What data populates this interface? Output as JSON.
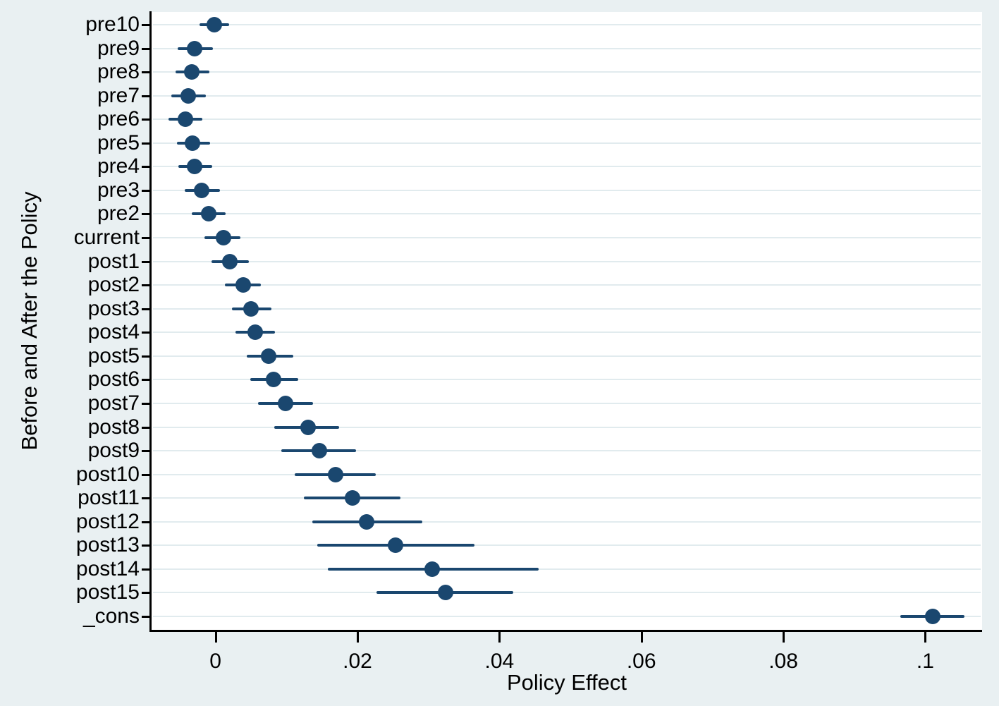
{
  "figure": {
    "background_color": "#e9f0f2",
    "plot_background_color": "#ffffff",
    "marker_color": "#1a476f",
    "grid_color": "#e1ebee",
    "axis_color": "#000000"
  },
  "chart_data": {
    "type": "scatter",
    "subtype": "horizontal-coefficient-plot-with-confidence-intervals",
    "title": "",
    "xlabel": "Policy Effect",
    "ylabel": "Before and After the Policy",
    "xlim": [
      -0.009,
      0.108
    ],
    "x_ticks": [
      0,
      0.02,
      0.04,
      0.06,
      0.08,
      0.1
    ],
    "x_tick_labels": [
      "0",
      ".02",
      ".04",
      ".06",
      ".08",
      ".1"
    ],
    "grid": "horizontal-per-category",
    "legend": "none",
    "points": [
      {
        "label": "pre10",
        "estimate": -0.0002,
        "ci_low": -0.0022,
        "ci_high": 0.0019
      },
      {
        "label": "pre9",
        "estimate": -0.0029,
        "ci_low": -0.0053,
        "ci_high": -0.0004
      },
      {
        "label": "pre8",
        "estimate": -0.0033,
        "ci_low": -0.0056,
        "ci_high": -0.0009
      },
      {
        "label": "pre7",
        "estimate": -0.0038,
        "ci_low": -0.0062,
        "ci_high": -0.0014
      },
      {
        "label": "pre6",
        "estimate": -0.0042,
        "ci_low": -0.0066,
        "ci_high": -0.0018
      },
      {
        "label": "pre5",
        "estimate": -0.0032,
        "ci_low": -0.0054,
        "ci_high": -0.0008
      },
      {
        "label": "pre4",
        "estimate": -0.0029,
        "ci_low": -0.0052,
        "ci_high": -0.0005
      },
      {
        "label": "pre3",
        "estimate": -0.0019,
        "ci_low": -0.0043,
        "ci_high": 0.0006
      },
      {
        "label": "pre2",
        "estimate": -0.001,
        "ci_low": -0.0033,
        "ci_high": 0.0014
      },
      {
        "label": "current",
        "estimate": 0.0011,
        "ci_low": -0.0016,
        "ci_high": 0.0035
      },
      {
        "label": "post1",
        "estimate": 0.002,
        "ci_low": -0.0006,
        "ci_high": 0.0047
      },
      {
        "label": "post2",
        "estimate": 0.0039,
        "ci_low": 0.0013,
        "ci_high": 0.0064
      },
      {
        "label": "post3",
        "estimate": 0.005,
        "ci_low": 0.0023,
        "ci_high": 0.0079
      },
      {
        "label": "post4",
        "estimate": 0.0056,
        "ci_low": 0.0028,
        "ci_high": 0.0084
      },
      {
        "label": "post5",
        "estimate": 0.0075,
        "ci_low": 0.0044,
        "ci_high": 0.011
      },
      {
        "label": "post6",
        "estimate": 0.0082,
        "ci_low": 0.0049,
        "ci_high": 0.0117
      },
      {
        "label": "post7",
        "estimate": 0.0099,
        "ci_low": 0.006,
        "ci_high": 0.0137
      },
      {
        "label": "post8",
        "estimate": 0.013,
        "ci_low": 0.0083,
        "ci_high": 0.0174
      },
      {
        "label": "post9",
        "estimate": 0.0146,
        "ci_low": 0.0093,
        "ci_high": 0.0198
      },
      {
        "label": "post10",
        "estimate": 0.0169,
        "ci_low": 0.0112,
        "ci_high": 0.0226
      },
      {
        "label": "post11",
        "estimate": 0.0193,
        "ci_low": 0.0125,
        "ci_high": 0.0261
      },
      {
        "label": "post12",
        "estimate": 0.0213,
        "ci_low": 0.0136,
        "ci_high": 0.0291
      },
      {
        "label": "post13",
        "estimate": 0.0254,
        "ci_low": 0.0143,
        "ci_high": 0.0365
      },
      {
        "label": "post14",
        "estimate": 0.0305,
        "ci_low": 0.0158,
        "ci_high": 0.0455
      },
      {
        "label": "post15",
        "estimate": 0.0324,
        "ci_low": 0.0227,
        "ci_high": 0.042
      },
      {
        "label": "_cons",
        "estimate": 0.101,
        "ci_low": 0.0965,
        "ci_high": 0.1055
      }
    ]
  }
}
